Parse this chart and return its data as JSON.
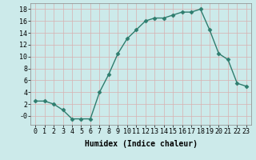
{
  "x": [
    0,
    1,
    2,
    3,
    4,
    5,
    6,
    7,
    8,
    9,
    10,
    11,
    12,
    13,
    14,
    15,
    16,
    17,
    18,
    19,
    20,
    21,
    22,
    23
  ],
  "y": [
    2.5,
    2.5,
    2.0,
    1.0,
    -0.5,
    -0.5,
    -0.5,
    4.0,
    7.0,
    10.5,
    13.0,
    14.5,
    16.0,
    16.5,
    16.5,
    17.0,
    17.5,
    17.5,
    18.0,
    14.5,
    10.5,
    9.5,
    5.5,
    5.0
  ],
  "line_color": "#2e7d6e",
  "marker": "D",
  "marker_size": 2.5,
  "bg_color": "#cceaea",
  "grid_color": "#b0d8d8",
  "xlabel": "Humidex (Indice chaleur)",
  "xlim": [
    -0.5,
    23.5
  ],
  "ylim": [
    -1.5,
    19
  ],
  "yticks": [
    0,
    2,
    4,
    6,
    8,
    10,
    12,
    14,
    16,
    18
  ],
  "ytick_labels": [
    "-0",
    "2",
    "4",
    "6",
    "8",
    "10",
    "12",
    "14",
    "16",
    "18"
  ],
  "xticks": [
    0,
    1,
    2,
    3,
    4,
    5,
    6,
    7,
    8,
    9,
    10,
    11,
    12,
    13,
    14,
    15,
    16,
    17,
    18,
    19,
    20,
    21,
    22,
    23
  ],
  "tick_fontsize": 6,
  "xlabel_fontsize": 7
}
